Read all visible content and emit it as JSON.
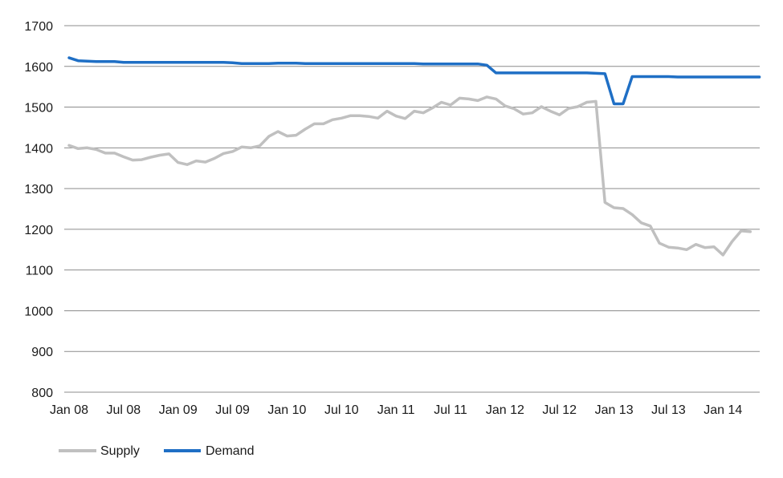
{
  "chart_data": {
    "type": "line",
    "title": "",
    "xlabel": "",
    "ylabel": "",
    "ylim": [
      800,
      1700
    ],
    "y_ticks": [
      "800",
      "900",
      "1000",
      "1100",
      "1200",
      "1300",
      "1400",
      "1500",
      "1600",
      "1700"
    ],
    "x_tick_labels": [
      "Jan 08",
      "Jul 08",
      "Jan 09",
      "Jul 09",
      "Jan 10",
      "Jul 10",
      "Jan 11",
      "Jul 11",
      "Jan 12",
      "Jul 12",
      "Jan 13",
      "Jul 13",
      "Jan 14"
    ],
    "grid": true,
    "legend_position": "bottom-left",
    "series": [
      {
        "name": "Supply",
        "color": "#c0c0c0",
        "values": [
          1406,
          1398,
          1400,
          1396,
          1387,
          1387,
          1378,
          1370,
          1371,
          1377,
          1382,
          1385,
          1364,
          1359,
          1368,
          1365,
          1374,
          1386,
          1391,
          1402,
          1400,
          1405,
          1428,
          1440,
          1429,
          1431,
          1446,
          1459,
          1459,
          1469,
          1473,
          1479,
          1479,
          1477,
          1473,
          1490,
          1478,
          1472,
          1490,
          1486,
          1498,
          1512,
          1505,
          1522,
          1520,
          1516,
          1525,
          1520,
          1503,
          1496,
          1483,
          1486,
          1501,
          1490,
          1481,
          1497,
          1501,
          1512,
          1514,
          1266,
          1253,
          1251,
          1236,
          1216,
          1208,
          1166,
          1156,
          1154,
          1150,
          1163,
          1155,
          1157,
          1137,
          1170,
          1196,
          1194
        ]
      },
      {
        "name": "Demand",
        "color": "#1f6fc5",
        "values": [
          1621,
          1614,
          1613,
          1612,
          1612,
          1612,
          1610,
          1610,
          1610,
          1610,
          1610,
          1610,
          1610,
          1610,
          1610,
          1610,
          1610,
          1610,
          1609,
          1607,
          1607,
          1607,
          1607,
          1608,
          1608,
          1608,
          1607,
          1607,
          1607,
          1607,
          1607,
          1607,
          1607,
          1607,
          1607,
          1607,
          1607,
          1607,
          1607,
          1606,
          1606,
          1606,
          1606,
          1606,
          1606,
          1606,
          1603,
          1584,
          1584,
          1584,
          1584,
          1584,
          1584,
          1584,
          1584,
          1584,
          1584,
          1584,
          1583,
          1582,
          1508,
          1508,
          1575,
          1575,
          1575,
          1575,
          1575,
          1574,
          1574,
          1574,
          1574,
          1574,
          1574,
          1574,
          1574,
          1574,
          1574
        ]
      }
    ]
  }
}
